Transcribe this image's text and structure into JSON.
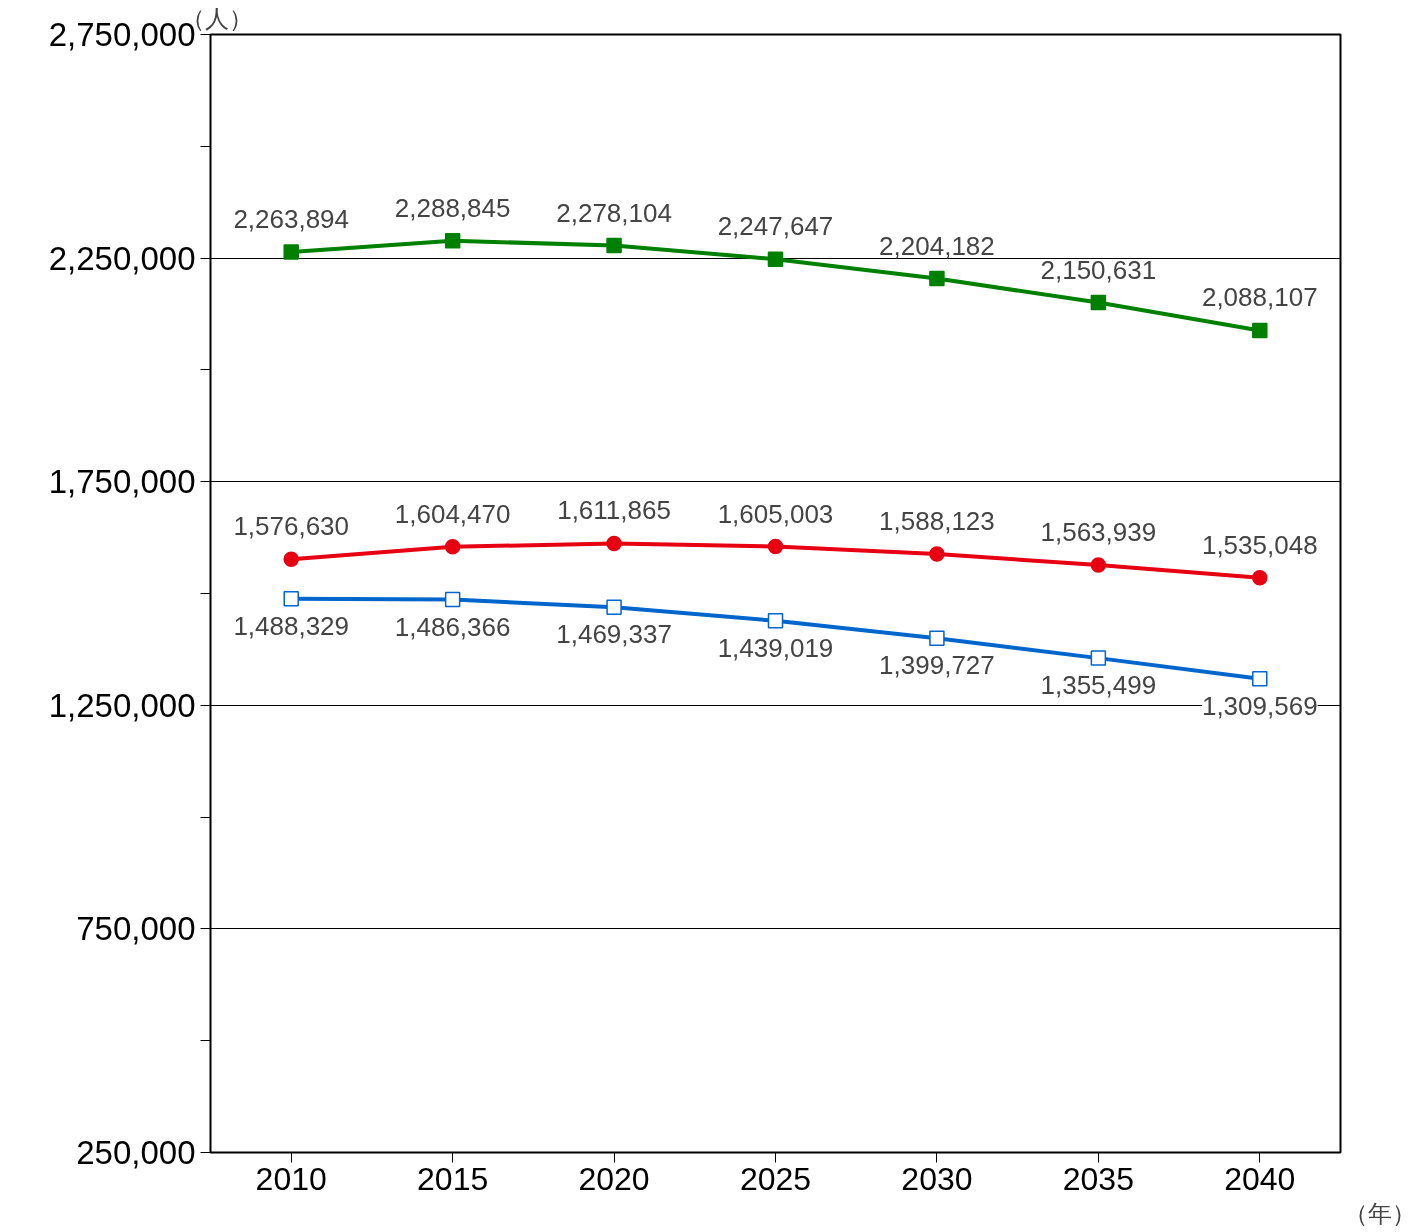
{
  "chart_data": {
    "type": "line",
    "xlabel": "（年）",
    "ylabel": "（人）",
    "x": [
      2010,
      2015,
      2020,
      2025,
      2030,
      2035,
      2040
    ],
    "xlim": [
      2007.5,
      2042.5
    ],
    "xticks": [
      2010,
      2015,
      2020,
      2025,
      2030,
      2035,
      2040
    ],
    "ylim": [
      250000,
      2750000
    ],
    "yticks": [
      {
        "value": 250000,
        "label": "250,000"
      },
      {
        "value": 500000,
        "label": null
      },
      {
        "value": 750000,
        "label": "750,000"
      },
      {
        "value": 1000000,
        "label": null
      },
      {
        "value": 1250000,
        "label": "1,250,000"
      },
      {
        "value": 1500000,
        "label": null
      },
      {
        "value": 1750000,
        "label": "1,750,000"
      },
      {
        "value": 2000000,
        "label": null
      },
      {
        "value": 2250000,
        "label": "2,250,000"
      },
      {
        "value": 2500000,
        "label": null
      },
      {
        "value": 2750000,
        "label": "2,750,000"
      }
    ],
    "grid": "y",
    "line_style": "solid",
    "series": [
      {
        "color": "#008000",
        "marker": "square",
        "values": [
          2263894,
          2288845,
          2278104,
          2247647,
          2204182,
          2150631,
          2088107
        ],
        "value_labels": [
          "2,263,894",
          "2,288,845",
          "2,278,104",
          "2,247,647",
          "2,204,182",
          "2,150,631",
          "2,088,107"
        ]
      },
      {
        "color": "#e60012",
        "marker": "circle",
        "values": [
          1576630,
          1604470,
          1611865,
          1605003,
          1588123,
          1563939,
          1535048
        ],
        "value_labels": [
          "1,576,630",
          "1,604,470",
          "1,611,865",
          "1,605,003",
          "1,588,123",
          "1,563,939",
          "1,535,048"
        ]
      },
      {
        "color": "#0066cc",
        "marker": "square",
        "values": [
          1488329,
          1486366,
          1469337,
          1439019,
          1399727,
          1355499,
          1309569
        ],
        "value_labels": [
          "1,488,329",
          "1,486,366",
          "1,469,337",
          "1,439,019",
          "1,399,727",
          "1,355,499",
          "1,309,569"
        ]
      }
    ]
  }
}
